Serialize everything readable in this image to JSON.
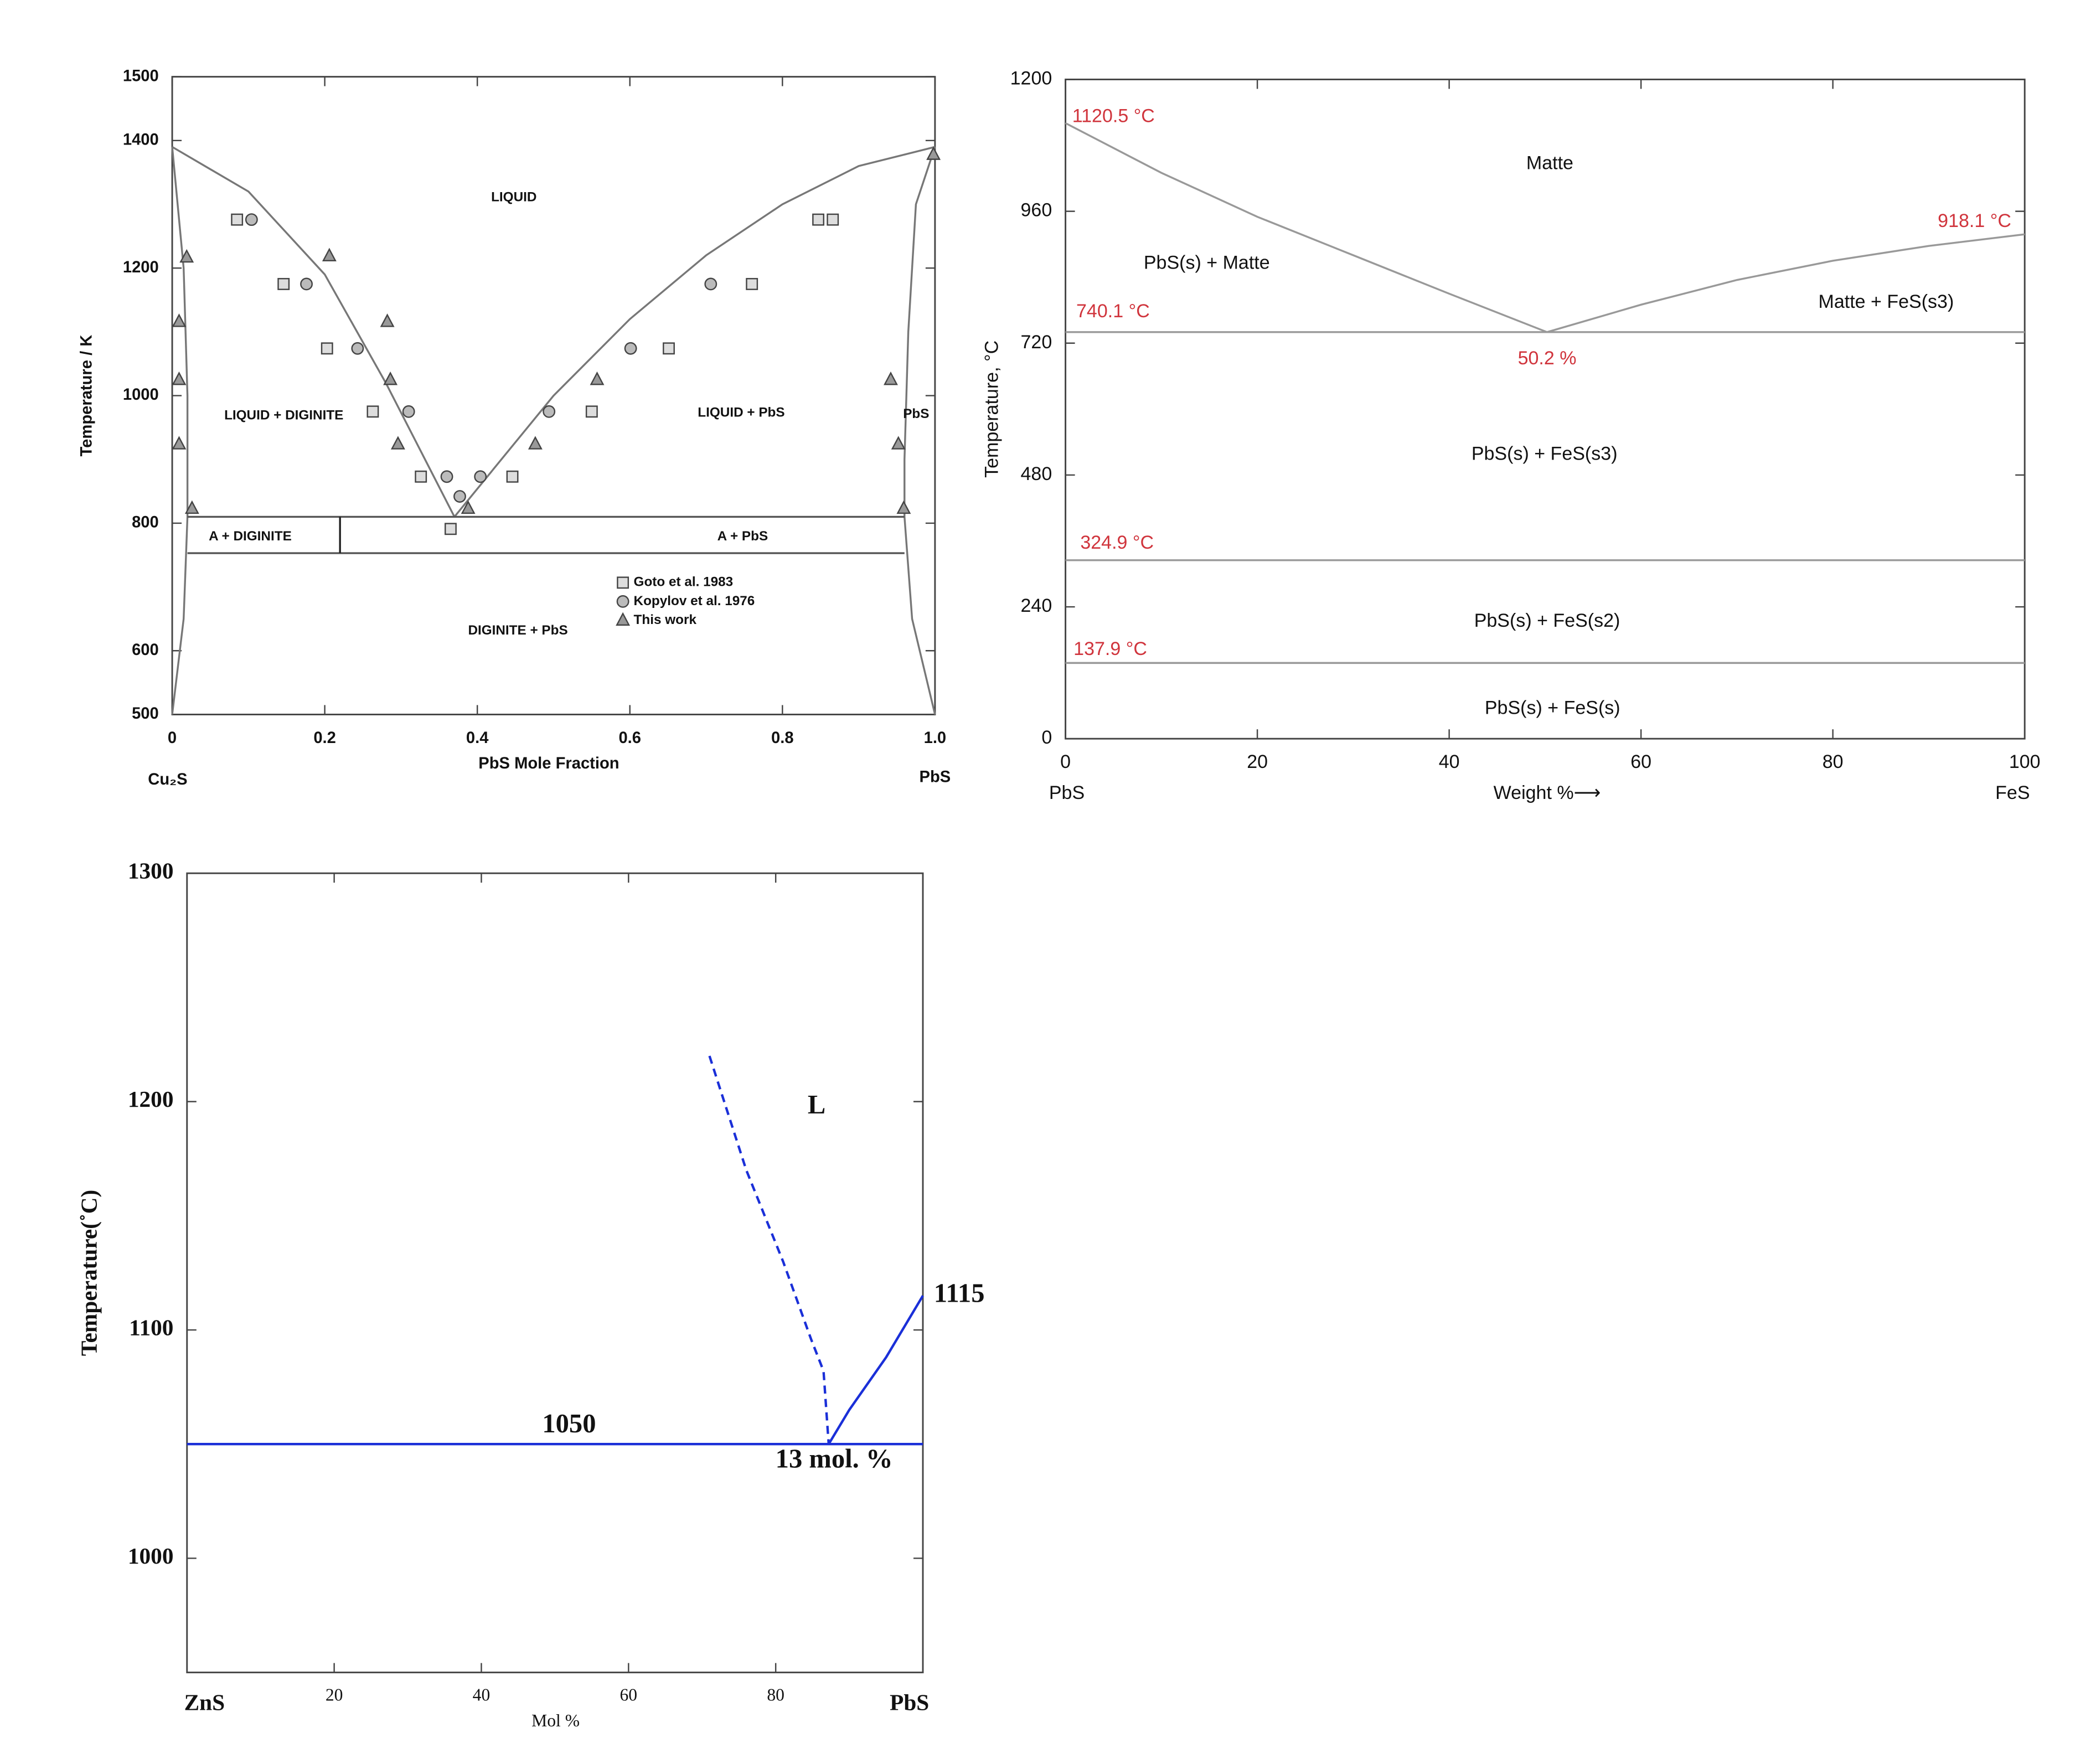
{
  "chart_data": [
    {
      "type": "line",
      "x_label": "PbS Mole Fraction",
      "y_label": "Temperature / K",
      "x_end_labels": [
        "Cu₂S",
        "PbS"
      ],
      "xlim": [
        0,
        1
      ],
      "ylim": [
        500,
        1500
      ],
      "xticks": [
        0,
        0.2,
        0.4,
        0.6,
        0.8,
        {
          "value": 1,
          "label": "1.0"
        }
      ],
      "yticks": [
        500,
        600,
        800,
        1000,
        1200,
        1400,
        1500
      ],
      "lines": [
        {
          "color": "#777777",
          "x": [
            0,
            0.1,
            0.2,
            0.28,
            0.37
          ],
          "values": [
            1390,
            1320,
            1190,
            1020,
            810
          ]
        },
        {
          "color": "#777777",
          "x": [
            0.37,
            0.5,
            0.6,
            0.7,
            0.8,
            0.9,
            1
          ],
          "values": [
            810,
            1000,
            1120,
            1220,
            1300,
            1360,
            1390
          ]
        },
        {
          "color": "#777777",
          "x": [
            0,
            0.015,
            0.02,
            0.02,
            0.015,
            0
          ],
          "values": [
            1390,
            1200,
            1000,
            810,
            650,
            500
          ]
        },
        {
          "color": "#777777",
          "x": [
            1,
            0.975,
            0.965,
            0.96,
            0.96,
            0.97,
            1
          ],
          "values": [
            1390,
            1300,
            1100,
            900,
            810,
            650,
            500
          ]
        },
        {
          "color": "#555555",
          "x": [
            0.02,
            0.96
          ],
          "values": [
            810,
            810
          ]
        },
        {
          "color": "#555555",
          "x": [
            0.02,
            0.96
          ],
          "values": [
            753,
            753
          ]
        },
        {
          "color": "#222222",
          "x": [
            0.22,
            0.22
          ],
          "values": [
            753,
            810
          ]
        }
      ],
      "series": [
        {
          "name": "Goto et al. 1983",
          "marker": "square",
          "x": [
            0.085,
            0.146,
            0.203,
            0.263,
            0.326,
            0.365,
            0.446,
            0.55,
            0.651,
            0.76,
            0.847,
            0.866
          ],
          "values": [
            1276,
            1175,
            1074,
            975,
            873,
            791,
            873,
            975,
            1074,
            1175,
            1276,
            1276
          ]
        },
        {
          "name": "Kopylov et al. 1976",
          "marker": "circle",
          "x": [
            0.104,
            0.176,
            0.243,
            0.31,
            0.36,
            0.377,
            0.404,
            0.494,
            0.601,
            0.706
          ],
          "values": [
            1276,
            1175,
            1074,
            975,
            873,
            842,
            873,
            975,
            1074,
            1175
          ]
        },
        {
          "name": "This work",
          "marker": "triangle",
          "x": [
            0.009,
            0.019,
            0.009,
            0.009,
            0.026,
            0.206,
            0.282,
            0.286,
            0.296,
            0.388,
            0.476,
            0.557,
            0.942,
            0.952,
            0.959,
            0.998
          ],
          "values": [
            1116,
            1217,
            1025,
            924,
            823,
            1219,
            1116,
            1025,
            924,
            823,
            924,
            1025,
            1025,
            924,
            823,
            1378
          ]
        }
      ],
      "annotations": [
        "LIQUID",
        "LIQUID + DIGINITE",
        "LIQUID + PbS",
        "PbS",
        "A + DIGINITE",
        "A + PbS",
        "DIGINITE + PbS"
      ]
    },
    {
      "type": "line",
      "x_label": "Weight %⟶",
      "y_label": "Temperature, °C",
      "x_end_labels": [
        "PbS",
        "FeS"
      ],
      "xlim": [
        0,
        100
      ],
      "ylim": [
        0,
        1200
      ],
      "xticks": [
        0,
        20,
        40,
        60,
        80,
        100
      ],
      "yticks": [
        0,
        240,
        480,
        720,
        960,
        1200
      ],
      "lines": [
        {
          "color": "#999999",
          "x": [
            0,
            10,
            20,
            30,
            40,
            50.2
          ],
          "values": [
            1120.5,
            1030,
            950,
            880,
            810,
            740.1
          ]
        },
        {
          "color": "#999999",
          "x": [
            50.2,
            60,
            70,
            80,
            90,
            100
          ],
          "values": [
            740.1,
            790,
            835,
            870,
            897,
            918.1
          ]
        },
        {
          "color": "#999999",
          "x": [
            0,
            100
          ],
          "values": [
            740.1,
            740.1
          ]
        },
        {
          "color": "#999999",
          "x": [
            0,
            100
          ],
          "values": [
            324.9,
            324.9
          ]
        },
        {
          "color": "#999999",
          "x": [
            0,
            100
          ],
          "values": [
            137.9,
            137.9
          ]
        }
      ],
      "annotations": [
        "Matte",
        "PbS(s) + Matte",
        "Matte + FeS(s3)",
        "PbS(s) + FeS(s3)",
        "PbS(s) + FeS(s2)",
        "PbS(s) + FeS(s)"
      ],
      "value_annotations": [
        "1120.5 °C",
        "918.1 °C",
        "740.1 °C",
        "50.2 %",
        "324.9 °C",
        "137.9 °C"
      ],
      "value_annotation_color": "#d0343c"
    },
    {
      "type": "line",
      "x_label": "Mol %",
      "y_label": "Temperature(˚C)",
      "x_end_labels": [
        "ZnS",
        "PbS"
      ],
      "xlim": [
        0,
        100
      ],
      "ylim": [
        950,
        1300
      ],
      "xticks": [
        20,
        40,
        60,
        80
      ],
      "yticks": [
        1000,
        1100,
        1200,
        1300
      ],
      "lines": [
        {
          "color": "#1a2fd8",
          "x": [
            0,
            100
          ],
          "values": [
            1050,
            1050
          ]
        },
        {
          "color": "#1a2fd8",
          "dashed": true,
          "x": [
            71,
            76,
            81,
            84.8,
            86.5,
            87.2
          ],
          "values": [
            1220,
            1170,
            1130,
            1096,
            1082,
            1050
          ]
        },
        {
          "color": "#1a2fd8",
          "x": [
            87.2,
            90,
            95,
            100
          ],
          "values": [
            1050,
            1065,
            1088,
            1115
          ]
        }
      ],
      "annotations": [
        "L",
        "1050",
        "1115",
        "13 mol. %"
      ]
    }
  ]
}
